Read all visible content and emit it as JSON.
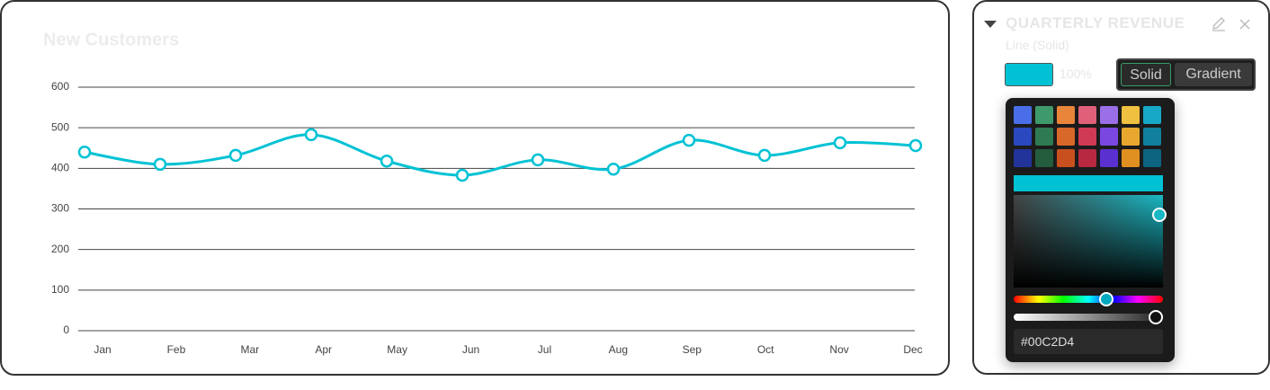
{
  "chart_data": {
    "type": "line",
    "title": "New Customers",
    "categories": [
      "Jan",
      "Feb",
      "Mar",
      "Apr",
      "May",
      "Jun",
      "Jul",
      "Aug",
      "Sep",
      "Oct",
      "Nov",
      "Dec"
    ],
    "series": [
      {
        "color": "#00C2D4",
        "values": [
          440,
          410,
          432,
          483,
          418,
          383,
          421,
          398,
          469,
          432,
          463,
          456
        ]
      }
    ],
    "ylim": [
      0,
      600
    ],
    "yticks": [
      0,
      100,
      200,
      300,
      400,
      500,
      600
    ],
    "grid": true
  },
  "panel": {
    "title": "QUARTERLY REVENUE",
    "subtitle": "Line (Solid)",
    "opacity": "100%",
    "buttons": [
      "Solid",
      "Gradient"
    ]
  }
}
